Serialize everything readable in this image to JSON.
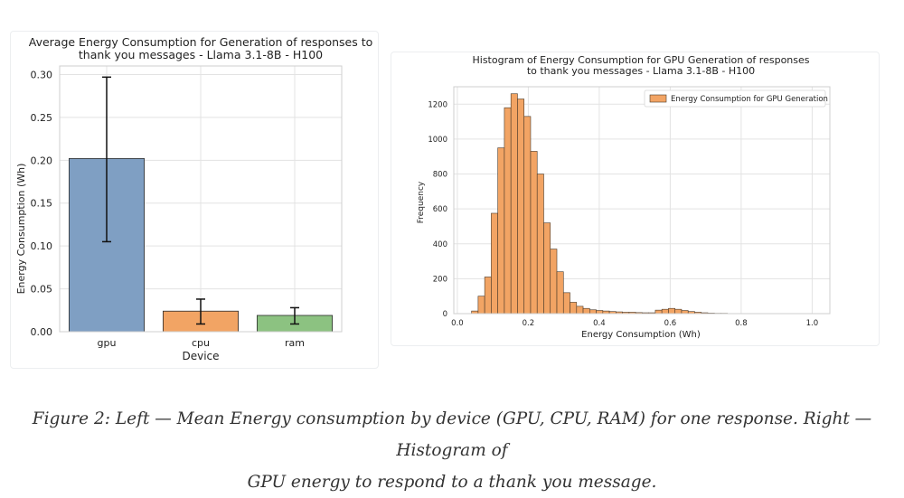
{
  "chart_data": [
    {
      "type": "bar",
      "title_lines": [
        "Average Energy Consumption for Generation of responses to",
        "thank you messages - Llama 3.1-8B - H100"
      ],
      "xlabel": "Device",
      "ylabel": "Energy Consumption (Wh)",
      "categories": [
        "gpu",
        "cpu",
        "ram"
      ],
      "values": [
        0.202,
        0.024,
        0.019
      ],
      "error_low": [
        0.105,
        0.009,
        0.009
      ],
      "error_high": [
        0.297,
        0.038,
        0.028
      ],
      "colors": [
        "#7f9fc3",
        "#f2a464",
        "#8cc281"
      ],
      "ylim": [
        0,
        0.31
      ],
      "yticks": [
        "0.00",
        "0.05",
        "0.10",
        "0.15",
        "0.20",
        "0.25",
        "0.30"
      ],
      "grid": true
    },
    {
      "type": "bar",
      "histogram": true,
      "title_lines": [
        "Histogram of Energy Consumption for GPU Generation of responses",
        "to thank you messages - Llama 3.1-8B - H100"
      ],
      "xlabel": "Energy Consumption (Wh)",
      "ylabel": "Frequency",
      "legend": "Energy Consumption for GPU Generation",
      "legend_position": "top-right",
      "bin_start": 0.04,
      "bin_width": 0.0185,
      "counts": [
        15,
        100,
        210,
        575,
        950,
        1180,
        1260,
        1230,
        1130,
        930,
        800,
        520,
        370,
        240,
        120,
        65,
        42,
        30,
        22,
        18,
        15,
        12,
        10,
        8,
        8,
        6,
        5,
        5,
        20,
        25,
        30,
        25,
        18,
        12,
        8,
        5,
        3,
        2,
        2,
        1,
        1,
        1,
        1,
        1,
        1,
        1,
        1
      ],
      "color": "#f2a464",
      "xlim": [
        -0.01,
        1.05
      ],
      "ylim": [
        0,
        1300
      ],
      "xticks": [
        "0.0",
        "0.2",
        "0.4",
        "0.6",
        "0.8",
        "1.0"
      ],
      "yticks": [
        "0",
        "200",
        "400",
        "600",
        "800",
        "1000",
        "1200"
      ],
      "grid": true
    }
  ],
  "caption": {
    "line1": "Figure 2: Left — Mean Energy consumption by device (GPU, CPU, RAM) for one response. Right — Histogram of",
    "line2": "GPU energy to respond to a thank you message."
  }
}
